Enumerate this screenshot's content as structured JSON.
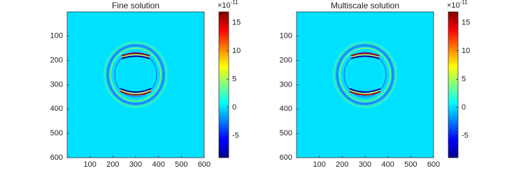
{
  "chart_data": [
    {
      "type": "heatmap",
      "title": "Fine solution",
      "colormap": "jet",
      "xlim": [
        0,
        600
      ],
      "ylim": [
        0,
        600
      ],
      "xticks": [
        100,
        200,
        300,
        400,
        500,
        600
      ],
      "yticks": [
        100,
        200,
        300,
        400,
        500,
        600
      ],
      "clim": [
        -8.9,
        16.9
      ],
      "cticks": [
        -5,
        0,
        5,
        10,
        15
      ],
      "colorbar_multiplier": {
        "base": "×10",
        "exponent": "-11"
      }
    },
    {
      "type": "heatmap",
      "title": "Multiscale solution",
      "colormap": "jet",
      "xlim": [
        0,
        600
      ],
      "ylim": [
        0,
        600
      ],
      "xticks": [
        100,
        200,
        300,
        400,
        500,
        600
      ],
      "yticks": [
        100,
        200,
        300,
        400,
        500,
        600
      ],
      "clim": [
        -8.9,
        16.9
      ],
      "cticks": [
        -5,
        0,
        5,
        10,
        15
      ],
      "colorbar_multiplier": {
        "base": "×10",
        "exponent": "-11"
      }
    }
  ]
}
